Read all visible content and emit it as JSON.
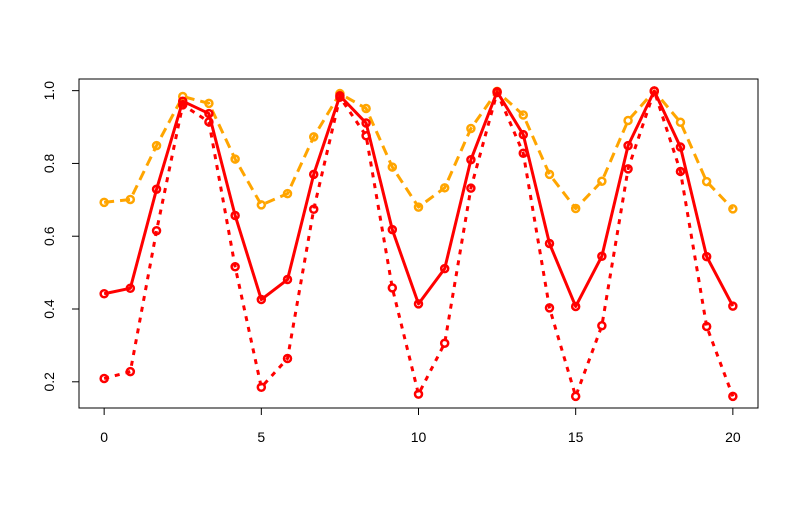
{
  "chart_data": {
    "type": "line",
    "title": "",
    "xlabel": "",
    "ylabel": "",
    "xlim": [
      -0.8,
      20.8
    ],
    "ylim": [
      0.128,
      1.032
    ],
    "grid": false,
    "legend": "none",
    "x_ticks": [
      0,
      5,
      10,
      15,
      20
    ],
    "y_ticks": [
      0.2,
      0.4,
      0.6,
      0.8,
      1.0
    ],
    "x_tick_labels": [
      "0",
      "5",
      "10",
      "15",
      "20"
    ],
    "y_tick_labels": [
      "0.2",
      "0.4",
      "0.6",
      "0.8",
      "1.0"
    ],
    "x": [
      0,
      0.833,
      1.667,
      2.5,
      3.333,
      4.167,
      5,
      5.833,
      6.667,
      7.5,
      8.333,
      9.167,
      10,
      10.833,
      11.667,
      12.5,
      13.333,
      14.167,
      15,
      15.833,
      16.667,
      17.5,
      18.333,
      19.167,
      20
    ],
    "series": [
      {
        "color": "#FFA500",
        "line_style": "dashed",
        "marker": "open-circle",
        "values": [
          0.693,
          0.701,
          0.849,
          0.984,
          0.965,
          0.812,
          0.686,
          0.717,
          0.873,
          0.992,
          0.951,
          0.79,
          0.68,
          0.733,
          0.896,
          0.998,
          0.933,
          0.77,
          0.676,
          0.751,
          0.918,
          0.999,
          0.913,
          0.75,
          0.675
        ]
      },
      {
        "color": "#FF0000",
        "line_style": "solid",
        "marker": "open-circle",
        "values": [
          0.442,
          0.457,
          0.729,
          0.971,
          0.937,
          0.657,
          0.426,
          0.481,
          0.77,
          0.986,
          0.911,
          0.618,
          0.414,
          0.511,
          0.81,
          0.997,
          0.879,
          0.58,
          0.407,
          0.545,
          0.849,
          0.999,
          0.845,
          0.544,
          0.408
        ]
      },
      {
        "color": "#FF0000",
        "line_style": "dotted",
        "marker": "open-circle",
        "values": [
          0.209,
          0.228,
          0.615,
          0.961,
          0.914,
          0.516,
          0.185,
          0.264,
          0.674,
          0.982,
          0.876,
          0.458,
          0.166,
          0.306,
          0.732,
          0.995,
          0.828,
          0.403,
          0.16,
          0.354,
          0.785,
          0.999,
          0.778,
          0.352,
          0.16
        ]
      }
    ]
  }
}
